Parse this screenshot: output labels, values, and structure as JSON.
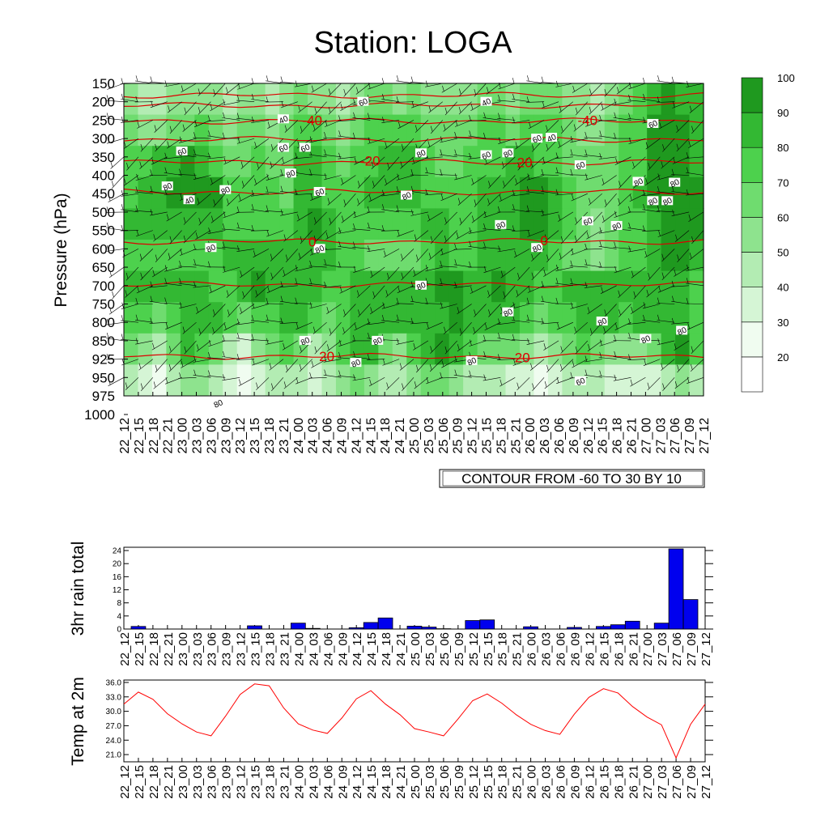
{
  "title": "Station: LOGA",
  "colors": {
    "fill_levels": [
      "#ffffff",
      "#f0fcf0",
      "#d5f5d5",
      "#b3ecb3",
      "#8ee38e",
      "#6fdc6f",
      "#4dd14d",
      "#33b833",
      "#1f991f"
    ],
    "rain_bar": "#0000ee",
    "temp_line": "#ff0000",
    "temp_contour": "#dd0000",
    "rh_contour": "#000000"
  },
  "time_labels": [
    "22_12",
    "22_15",
    "22_18",
    "22_21",
    "23_00",
    "23_03",
    "23_06",
    "23_09",
    "23_12",
    "23_15",
    "23_18",
    "23_21",
    "24_00",
    "24_03",
    "24_06",
    "24_09",
    "24_12",
    "24_15",
    "24_18",
    "24_21",
    "25_00",
    "25_03",
    "25_06",
    "25_09",
    "25_12",
    "25_15",
    "25_18",
    "25_21",
    "26_00",
    "26_03",
    "26_06",
    "26_09",
    "26_12",
    "26_15",
    "26_18",
    "26_21",
    "27_00",
    "27_03",
    "27_06",
    "27_09",
    "27_12"
  ],
  "chart_data": [
    {
      "type": "heatmap",
      "title": "Station: LOGA",
      "ylabel": "Pressure (hPa)",
      "y_ticks": [
        "150",
        "200",
        "250",
        "300",
        "350",
        "400",
        "450",
        "500",
        "550",
        "600",
        "650",
        "700",
        "750",
        "800",
        "850",
        "925",
        "950",
        "975",
        "1000"
      ],
      "colorbar_labels": [
        "20",
        "30",
        "40",
        "50",
        "60",
        "70",
        "80",
        "90",
        "100"
      ],
      "info_label": "CONTOUR FROM -60 TO 30 BY 10",
      "rh_contour_labels": [
        {
          "text": "40",
          "t": 4.5,
          "p": 6.35
        },
        {
          "text": "40",
          "t": 11.0,
          "p": 1.95
        },
        {
          "text": "40",
          "t": 25.0,
          "p": 1.0
        },
        {
          "text": "40",
          "t": 29.5,
          "p": 2.95
        },
        {
          "text": "60",
          "t": 4.0,
          "p": 3.7
        },
        {
          "text": "60",
          "t": 11.0,
          "p": 3.5
        },
        {
          "text": "60",
          "t": 16.5,
          "p": 1.0
        },
        {
          "text": "60",
          "t": 12.5,
          "p": 3.5
        },
        {
          "text": "60",
          "t": 25.0,
          "p": 3.9
        },
        {
          "text": "60",
          "t": 28.5,
          "p": 3.0
        },
        {
          "text": "60",
          "t": 31.5,
          "p": 4.45
        },
        {
          "text": "60",
          "t": 36.5,
          "p": 2.2
        },
        {
          "text": "60",
          "t": 13.5,
          "p": 5.9
        },
        {
          "text": "60",
          "t": 32.0,
          "p": 7.5
        },
        {
          "text": "60",
          "t": 31.5,
          "p": 16.2
        },
        {
          "text": "80",
          "t": 3.0,
          "p": 5.6
        },
        {
          "text": "80",
          "t": 7.0,
          "p": 5.8
        },
        {
          "text": "80",
          "t": 11.5,
          "p": 4.9
        },
        {
          "text": "80",
          "t": 20.5,
          "p": 3.8
        },
        {
          "text": "80",
          "t": 26.5,
          "p": 3.8
        },
        {
          "text": "80",
          "t": 19.5,
          "p": 6.1
        },
        {
          "text": "80",
          "t": 13.5,
          "p": 9.0
        },
        {
          "text": "80",
          "t": 6.0,
          "p": 8.95
        },
        {
          "text": "80",
          "t": 26.0,
          "p": 7.7
        },
        {
          "text": "80",
          "t": 28.5,
          "p": 8.95
        },
        {
          "text": "80",
          "t": 34.0,
          "p": 7.75
        },
        {
          "text": "80",
          "t": 35.5,
          "p": 5.35
        },
        {
          "text": "80",
          "t": 36.5,
          "p": 6.4
        },
        {
          "text": "80",
          "t": 20.5,
          "p": 11.0
        },
        {
          "text": "80",
          "t": 26.5,
          "p": 12.45
        },
        {
          "text": "80",
          "t": 33.0,
          "p": 12.95
        },
        {
          "text": "80",
          "t": 36.0,
          "p": 13.9
        },
        {
          "text": "80",
          "t": 38.5,
          "p": 13.45
        },
        {
          "text": "80",
          "t": 12.5,
          "p": 14.0
        },
        {
          "text": "80",
          "t": 17.5,
          "p": 14.0
        },
        {
          "text": "80",
          "t": 16.0,
          "p": 15.2
        },
        {
          "text": "80",
          "t": 24.0,
          "p": 15.1
        },
        {
          "text": "80",
          "t": 6.5,
          "p": 17.4
        },
        {
          "text": "80",
          "t": 38.0,
          "p": 5.4
        },
        {
          "text": "80",
          "t": 37.5,
          "p": 6.4
        }
      ],
      "temp_contour_labels": [
        {
          "text": "-40",
          "t": 13.0,
          "p": 2.0
        },
        {
          "text": "-40",
          "t": 32.0,
          "p": 2.0
        },
        {
          "text": "-20",
          "t": 17.0,
          "p": 4.2
        },
        {
          "text": "-20",
          "t": 27.5,
          "p": 4.3
        },
        {
          "text": "0",
          "t": 13.0,
          "p": 8.6
        },
        {
          "text": "0",
          "t": 29.0,
          "p": 8.55
        },
        {
          "text": "20",
          "t": 14.0,
          "p": 14.85
        },
        {
          "text": "20",
          "t": 27.5,
          "p": 14.9
        }
      ],
      "rh_field": [
        [
          55,
          45,
          40,
          50,
          55,
          55,
          50,
          45,
          50,
          50,
          45,
          50,
          60,
          55,
          55,
          40,
          50,
          60,
          65,
          55,
          60,
          55,
          50,
          50,
          55,
          60,
          60,
          55,
          60,
          65,
          60,
          50,
          50,
          45,
          55,
          65,
          70,
          85,
          90,
          85,
          80
        ],
        [
          60,
          55,
          50,
          60,
          65,
          70,
          60,
          55,
          60,
          65,
          55,
          60,
          75,
          70,
          65,
          55,
          60,
          70,
          75,
          70,
          75,
          65,
          60,
          60,
          65,
          70,
          70,
          65,
          70,
          75,
          70,
          60,
          55,
          55,
          60,
          70,
          75,
          90,
          95,
          90,
          85
        ],
        [
          70,
          75,
          80,
          85,
          90,
          80,
          70,
          65,
          65,
          70,
          65,
          65,
          80,
          80,
          70,
          65,
          70,
          75,
          80,
          80,
          80,
          70,
          65,
          65,
          70,
          75,
          75,
          80,
          85,
          75,
          70,
          65,
          60,
          60,
          65,
          70,
          75,
          90,
          95,
          90,
          85
        ],
        [
          75,
          80,
          85,
          95,
          95,
          90,
          95,
          75,
          70,
          70,
          70,
          65,
          80,
          85,
          75,
          70,
          75,
          80,
          80,
          80,
          80,
          75,
          70,
          70,
          75,
          80,
          80,
          85,
          90,
          90,
          85,
          75,
          60,
          60,
          65,
          70,
          80,
          90,
          95,
          95,
          90
        ],
        [
          80,
          85,
          85,
          85,
          85,
          80,
          80,
          75,
          75,
          75,
          75,
          75,
          80,
          90,
          80,
          75,
          75,
          75,
          75,
          75,
          75,
          80,
          80,
          75,
          75,
          80,
          85,
          80,
          90,
          90,
          85,
          75,
          60,
          55,
          60,
          70,
          75,
          85,
          95,
          95,
          90
        ],
        [
          75,
          75,
          75,
          70,
          70,
          70,
          75,
          80,
          85,
          85,
          85,
          80,
          80,
          85,
          80,
          75,
          70,
          65,
          60,
          60,
          65,
          75,
          80,
          75,
          75,
          80,
          85,
          80,
          85,
          85,
          75,
          65,
          60,
          55,
          60,
          70,
          75,
          85,
          90,
          90,
          85
        ],
        [
          80,
          80,
          80,
          85,
          85,
          80,
          75,
          75,
          80,
          90,
          85,
          80,
          85,
          80,
          75,
          75,
          80,
          80,
          80,
          85,
          85,
          85,
          95,
          90,
          85,
          85,
          90,
          85,
          80,
          75,
          75,
          80,
          80,
          80,
          85,
          85,
          85,
          85,
          85,
          80,
          75
        ],
        [
          75,
          70,
          60,
          75,
          80,
          85,
          80,
          70,
          65,
          70,
          75,
          80,
          80,
          70,
          65,
          70,
          80,
          85,
          80,
          80,
          85,
          85,
          85,
          90,
          85,
          85,
          85,
          80,
          70,
          65,
          70,
          75,
          80,
          85,
          80,
          75,
          80,
          80,
          85,
          80,
          70
        ],
        [
          60,
          50,
          40,
          65,
          80,
          75,
          60,
          45,
          35,
          50,
          65,
          70,
          60,
          45,
          55,
          75,
          85,
          80,
          65,
          55,
          75,
          85,
          90,
          85,
          70,
          60,
          65,
          60,
          50,
          40,
          55,
          65,
          70,
          60,
          55,
          50,
          55,
          60,
          80,
          90,
          70
        ],
        [
          45,
          35,
          25,
          40,
          55,
          50,
          40,
          30,
          20,
          30,
          40,
          45,
          40,
          30,
          40,
          55,
          60,
          55,
          45,
          40,
          50,
          60,
          60,
          55,
          45,
          40,
          40,
          35,
          30,
          25,
          30,
          40,
          45,
          40,
          35,
          30,
          30,
          35,
          45,
          50,
          40
        ]
      ],
      "temp_levels": [
        {
          "value": -60,
          "p": 0.65
        },
        {
          "value": -50,
          "p": 1.2
        },
        {
          "value": -40,
          "p": 2.05
        },
        {
          "value": -30,
          "p": 3.05
        },
        {
          "value": -20,
          "p": 4.3
        },
        {
          "value": -10,
          "p": 5.9
        },
        {
          "value": 0,
          "p": 8.6
        },
        {
          "value": 10,
          "p": 10.95
        },
        {
          "value": 20,
          "p": 14.85
        }
      ]
    },
    {
      "type": "bar",
      "ylabel": "3hr rain total",
      "ylim": [
        0,
        25
      ],
      "y_ticks": [
        "0",
        "4",
        "8",
        "12",
        "16",
        "20",
        "24"
      ],
      "categories": [
        "22_12",
        "22_15",
        "22_18",
        "22_21",
        "23_00",
        "23_03",
        "23_06",
        "23_09",
        "23_12",
        "23_15",
        "23_18",
        "23_21",
        "24_00",
        "24_03",
        "24_06",
        "24_09",
        "24_12",
        "24_15",
        "24_18",
        "24_21",
        "25_00",
        "25_03",
        "25_06",
        "25_09",
        "25_12",
        "25_15",
        "25_18",
        "25_21",
        "26_00",
        "26_03",
        "26_06",
        "26_09",
        "26_12",
        "26_15",
        "26_18",
        "26_21",
        "27_00",
        "27_03",
        "27_06",
        "27_09",
        "27_12"
      ],
      "values": [
        0,
        0.8,
        0,
        0,
        0,
        0,
        0,
        0,
        0,
        1.0,
        0,
        0,
        1.8,
        0.2,
        0,
        0,
        0.4,
        2.0,
        3.4,
        0,
        0.9,
        0.6,
        0.1,
        0,
        2.6,
        2.8,
        0,
        0,
        0.7,
        0,
        0,
        0.5,
        0,
        0.8,
        1.3,
        2.4,
        0,
        1.8,
        24.5,
        9.0,
        0
      ]
    },
    {
      "type": "line",
      "ylabel": "Temp at 2m",
      "ylim": [
        19.5,
        36.5
      ],
      "y_ticks": [
        "21.0",
        "24.0",
        "27.0",
        "30.0",
        "33.0",
        "36.0"
      ],
      "categories": [
        "22_12",
        "22_15",
        "22_18",
        "22_21",
        "23_00",
        "23_03",
        "23_06",
        "23_09",
        "23_12",
        "23_15",
        "23_18",
        "23_21",
        "24_00",
        "24_03",
        "24_06",
        "24_09",
        "24_12",
        "24_15",
        "24_18",
        "24_21",
        "25_00",
        "25_03",
        "25_06",
        "25_09",
        "25_12",
        "25_15",
        "25_18",
        "25_21",
        "26_00",
        "26_03",
        "26_06",
        "26_09",
        "26_12",
        "26_15",
        "26_18",
        "26_21",
        "27_00",
        "27_03",
        "27_06",
        "27_09",
        "27_12"
      ],
      "values": [
        31.5,
        34.0,
        32.5,
        29.5,
        27.4,
        25.7,
        24.9,
        29.0,
        33.5,
        35.7,
        35.3,
        30.7,
        27.4,
        26.1,
        25.4,
        28.6,
        32.6,
        34.3,
        31.5,
        29.3,
        26.4,
        25.7,
        24.9,
        28.4,
        32.2,
        33.6,
        31.7,
        29.3,
        27.3,
        26.0,
        25.2,
        29.4,
        32.9,
        34.7,
        33.8,
        31.0,
        28.8,
        27.2,
        20.3,
        27.3,
        31.5
      ]
    }
  ]
}
